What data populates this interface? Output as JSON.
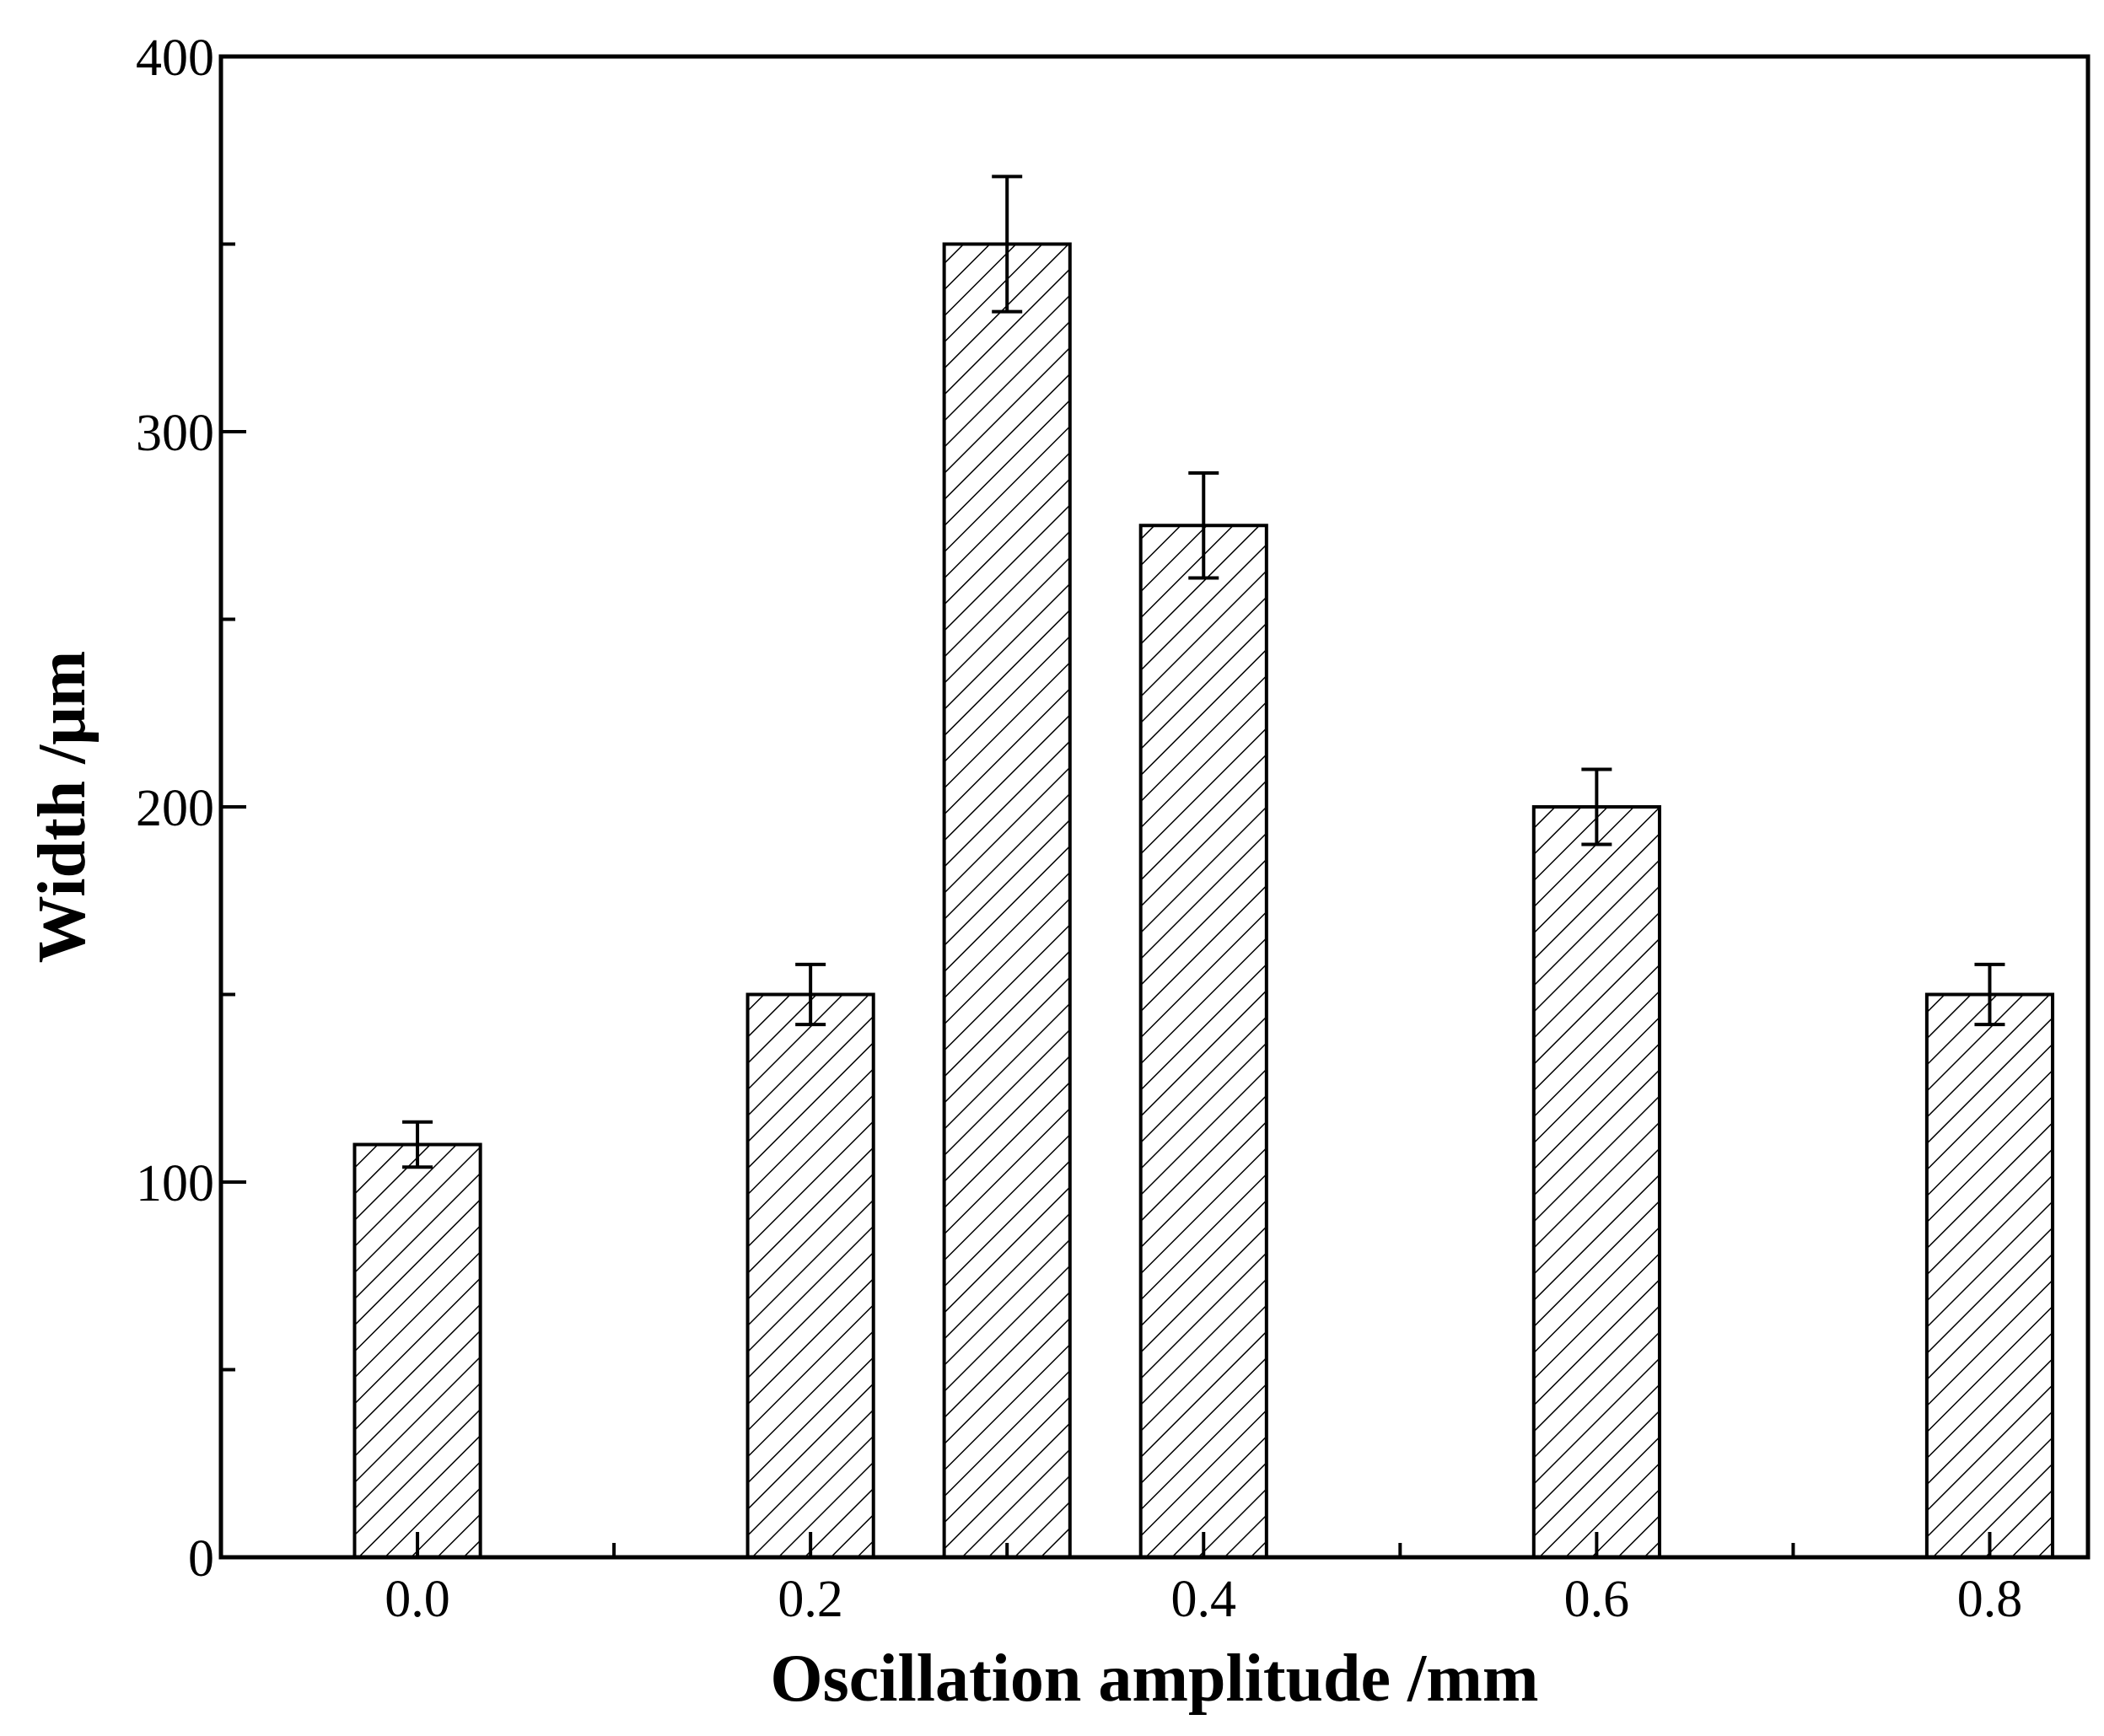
{
  "chart_data": {
    "type": "bar",
    "title": "",
    "xlabel": "Oscillation amplitude /mm",
    "ylabel": "Width /μm",
    "xlim": [
      -0.1,
      0.85
    ],
    "ylim": [
      0,
      400
    ],
    "x_ticks": [
      0.0,
      0.2,
      0.4,
      0.6,
      0.8
    ],
    "x_tick_labels": [
      "0.0",
      "0.2",
      "0.4",
      "0.6",
      "0.8"
    ],
    "x_minor_ticks": [
      0.1,
      0.3,
      0.5,
      0.7
    ],
    "y_ticks": [
      0,
      100,
      200,
      300,
      400
    ],
    "y_tick_labels": [
      "0",
      "100",
      "200",
      "300",
      "400"
    ],
    "y_minor_ticks": [
      50,
      150,
      250,
      350
    ],
    "bar_width": 0.064,
    "bar_fill": "hatched",
    "grid": false,
    "series": [
      {
        "name": "Width",
        "x": [
          0.0,
          0.2,
          0.3,
          0.4,
          0.6,
          0.8
        ],
        "values": [
          110,
          150,
          350,
          275,
          200,
          150
        ],
        "error": [
          6,
          8,
          18,
          14,
          10,
          8
        ]
      }
    ]
  }
}
